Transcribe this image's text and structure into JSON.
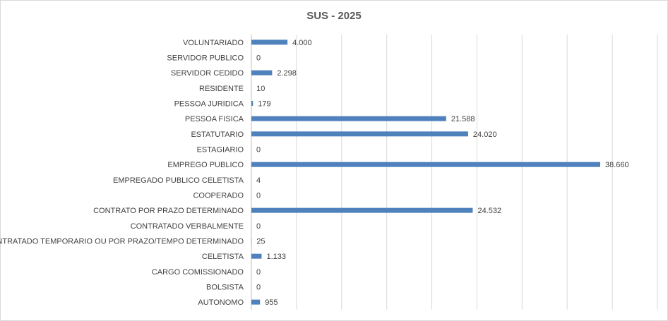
{
  "chart_data": {
    "type": "bar",
    "orientation": "horizontal",
    "title": "SUS - 2025",
    "xlim": [
      0,
      45000
    ],
    "grid": "vertical",
    "legend": "none",
    "bar_color": "#4f81bd",
    "categories": [
      "VOLUNTARIADO",
      "SERVIDOR PUBLICO",
      "SERVIDOR CEDIDO",
      "RESIDENTE",
      "PESSOA JURIDICA",
      "PESSOA FISICA",
      "ESTATUTARIO",
      "ESTAGIARIO",
      "EMPREGO PUBLICO",
      "EMPREGADO PUBLICO CELETISTA",
      "COOPERADO",
      "CONTRATO POR PRAZO DETERMINADO",
      "CONTRATADO VERBALMENTE",
      "CONTRATADO TEMPORARIO OU POR PRAZO/TEMPO DETERMINADO",
      "CELETISTA",
      "CARGO COMISSIONADO",
      "BOLSISTA",
      "AUTONOMO"
    ],
    "values": [
      4000,
      0,
      2298,
      10,
      179,
      21588,
      24020,
      0,
      38660,
      4,
      0,
      24532,
      0,
      25,
      1133,
      0,
      0,
      955
    ],
    "data_labels": [
      "4.000",
      "0",
      "2.298",
      "10",
      "179",
      "21.588",
      "24.020",
      "0",
      "38.660",
      "4",
      "0",
      "24.532",
      "0",
      "25",
      "1.133",
      "0",
      "0",
      "955"
    ]
  }
}
